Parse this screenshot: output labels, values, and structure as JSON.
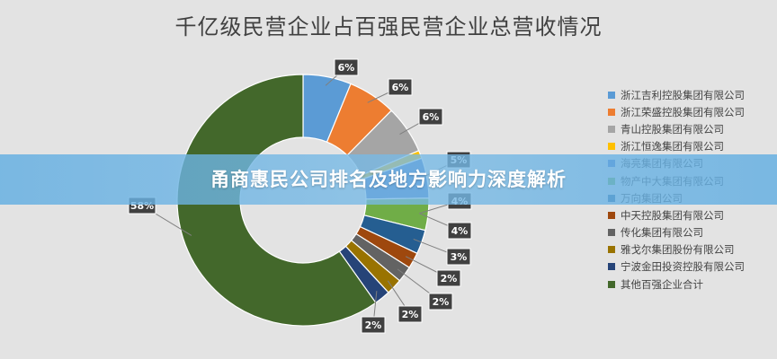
{
  "chart_data": {
    "type": "pie",
    "donut": true,
    "title": "千亿级民营企业占百强民营企业总营收情况",
    "slices": [
      {
        "label": "浙江吉利控股集团有限公司",
        "value": 6,
        "color": "#5b9bd5"
      },
      {
        "label": "浙江荣盛控股集团有限公司",
        "value": 6,
        "color": "#ed7d31"
      },
      {
        "label": "青山控股集团有限公司",
        "value": 6,
        "color": "#a5a5a5"
      },
      {
        "label": "浙江恒逸集团有限公司",
        "value": 1,
        "color": "#ffc000"
      },
      {
        "label": "海亮集团有限公司",
        "value": 5,
        "color": "#4472c4"
      },
      {
        "label": "物产中大集团有限公司",
        "value": 4,
        "color": "#70ad47"
      },
      {
        "label": "万向集团公司",
        "value": 3,
        "color": "#255e91"
      },
      {
        "label": "中天控股集团有限公司",
        "value": 2,
        "color": "#9e480e"
      },
      {
        "label": "传化集团有限公司",
        "value": 2,
        "color": "#636363"
      },
      {
        "label": "雅戈尔集团股份有限公司",
        "value": 2,
        "color": "#997300"
      },
      {
        "label": "宁波金田投资控股有限公司",
        "value": 2,
        "color": "#264478"
      },
      {
        "label": "其他百强企业合计",
        "value": 58,
        "color": "#43682b"
      }
    ],
    "data_labels": [
      {
        "slice": 0,
        "text": "6%"
      },
      {
        "slice": 1,
        "text": "6%"
      },
      {
        "slice": 2,
        "text": "6%"
      },
      {
        "slice": 4,
        "text": "5%"
      },
      {
        "slice": 5,
        "text": "4%"
      },
      {
        "slice": 5,
        "text": "4%"
      },
      {
        "slice": 6,
        "text": "3%"
      },
      {
        "slice": 7,
        "text": "2%"
      },
      {
        "slice": 8,
        "text": "2%"
      },
      {
        "slice": 9,
        "text": "2%"
      },
      {
        "slice": 10,
        "text": "2%"
      },
      {
        "slice": 11,
        "text": "58%"
      }
    ],
    "legend": {
      "position": "right"
    }
  },
  "overlay": {
    "headline": "甬商惠民公司排名及地方影响力深度解析",
    "color": "#62aee2"
  }
}
